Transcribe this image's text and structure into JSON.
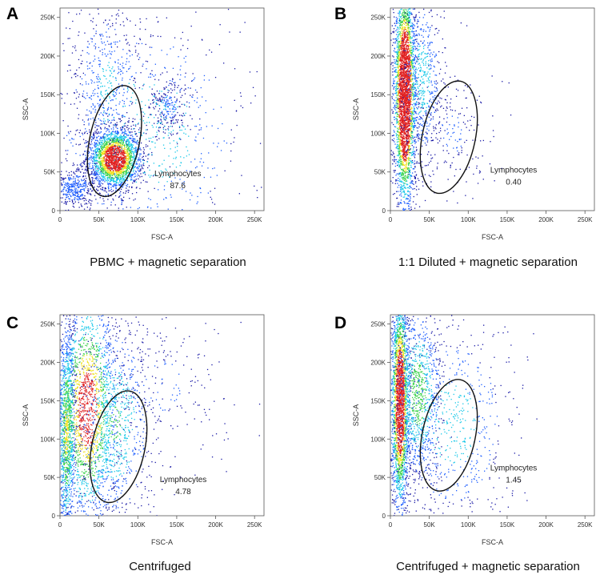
{
  "chart_data": [
    {
      "type": "scatter",
      "panel": "A",
      "caption": "PBMC + magnetic separation",
      "xlabel": "FSC-A",
      "ylabel": "SSC-A",
      "xlim": [
        0,
        262144
      ],
      "ylim": [
        0,
        262144
      ],
      "xticks": [
        "0",
        "50K",
        "100K",
        "150K",
        "200K",
        "250K"
      ],
      "yticks": [
        "0",
        "50K",
        "100K",
        "150K",
        "200K",
        "250K"
      ],
      "gate": {
        "name": "Lymphocytes",
        "value": "87.6",
        "center": [
          70000,
          90000
        ],
        "radii": [
          32000,
          73000
        ],
        "rotation_deg": 12
      },
      "populations": [
        {
          "center": [
            70000,
            68000
          ],
          "spread": [
            17000,
            20000
          ],
          "weight": 0.55
        },
        {
          "center": [
            18000,
            30000
          ],
          "spread": [
            14000,
            14000
          ],
          "weight": 0.1
        },
        {
          "center": [
            60000,
            170000
          ],
          "spread": [
            25000,
            55000
          ],
          "weight": 0.12
        },
        {
          "center": [
            140000,
            135000
          ],
          "spread": [
            14000,
            20000
          ],
          "weight": 0.06
        },
        {
          "center": [
            110000,
            100000
          ],
          "spread": [
            70000,
            80000
          ],
          "weight": 0.17
        }
      ]
    },
    {
      "type": "scatter",
      "panel": "B",
      "caption": "1:1 Diluted + magnetic separation",
      "xlabel": "FSC-A",
      "ylabel": "SSC-A",
      "xlim": [
        0,
        262144
      ],
      "ylim": [
        0,
        262144
      ],
      "xticks": [
        "0",
        "50K",
        "100K",
        "150K",
        "200K",
        "250K"
      ],
      "yticks": [
        "0",
        "50K",
        "100K",
        "150K",
        "200K",
        "250K"
      ],
      "gate": {
        "name": "Lymphocytes",
        "value": "0.40",
        "center": [
          75000,
          95000
        ],
        "radii": [
          34000,
          74000
        ],
        "rotation_deg": 12
      },
      "populations": [
        {
          "center": [
            18000,
            150000
          ],
          "spread": [
            7000,
            75000
          ],
          "weight": 0.8
        },
        {
          "center": [
            40000,
            170000
          ],
          "spread": [
            14000,
            60000
          ],
          "weight": 0.15
        },
        {
          "center": [
            80000,
            100000
          ],
          "spread": [
            30000,
            45000
          ],
          "weight": 0.05
        }
      ]
    },
    {
      "type": "scatter",
      "panel": "C",
      "caption": "Centrifuged",
      "xlabel": "FSC-A",
      "ylabel": "SSC-A",
      "xlim": [
        0,
        262144
      ],
      "ylim": [
        0,
        262144
      ],
      "xticks": [
        "0",
        "50K",
        "100K",
        "150K",
        "200K",
        "250K"
      ],
      "yticks": [
        "0",
        "50K",
        "100K",
        "150K",
        "200K",
        "250K"
      ],
      "gate": {
        "name": "Lymphocytes",
        "value": "4.78",
        "center": [
          75000,
          90000
        ],
        "radii": [
          34000,
          74000
        ],
        "rotation_deg": 12
      },
      "populations": [
        {
          "center": [
            8000,
            110000
          ],
          "spread": [
            6000,
            80000
          ],
          "weight": 0.3
        },
        {
          "center": [
            35000,
            140000
          ],
          "spread": [
            20000,
            80000
          ],
          "weight": 0.45
        },
        {
          "center": [
            70000,
            120000
          ],
          "spread": [
            25000,
            70000
          ],
          "weight": 0.2
        },
        {
          "center": [
            130000,
            170000
          ],
          "spread": [
            50000,
            60000
          ],
          "weight": 0.05
        }
      ]
    },
    {
      "type": "scatter",
      "panel": "D",
      "caption": "Centrifuged + magnetic separation",
      "xlabel": "FSC-A",
      "ylabel": "SSC-A",
      "xlim": [
        0,
        262144
      ],
      "ylim": [
        0,
        262144
      ],
      "xticks": [
        "0",
        "50K",
        "100K",
        "150K",
        "200K",
        "250K"
      ],
      "yticks": [
        "0",
        "50K",
        "100K",
        "150K",
        "200K",
        "250K"
      ],
      "gate": {
        "name": "Lymphocytes",
        "value": "1.45",
        "center": [
          75000,
          105000
        ],
        "radii": [
          34000,
          74000
        ],
        "rotation_deg": 12
      },
      "populations": [
        {
          "center": [
            12000,
            150000
          ],
          "spread": [
            6000,
            75000
          ],
          "weight": 0.6
        },
        {
          "center": [
            35000,
            160000
          ],
          "spread": [
            15000,
            60000
          ],
          "weight": 0.25
        },
        {
          "center": [
            80000,
            120000
          ],
          "spread": [
            40000,
            70000
          ],
          "weight": 0.15
        }
      ]
    }
  ],
  "colors": {
    "sparse": "#1a1aa6",
    "low": "#1f5fff",
    "mid": "#18c8e8",
    "high": "#3ad24a",
    "peak": "#f0e020",
    "hot": "#e02020"
  }
}
